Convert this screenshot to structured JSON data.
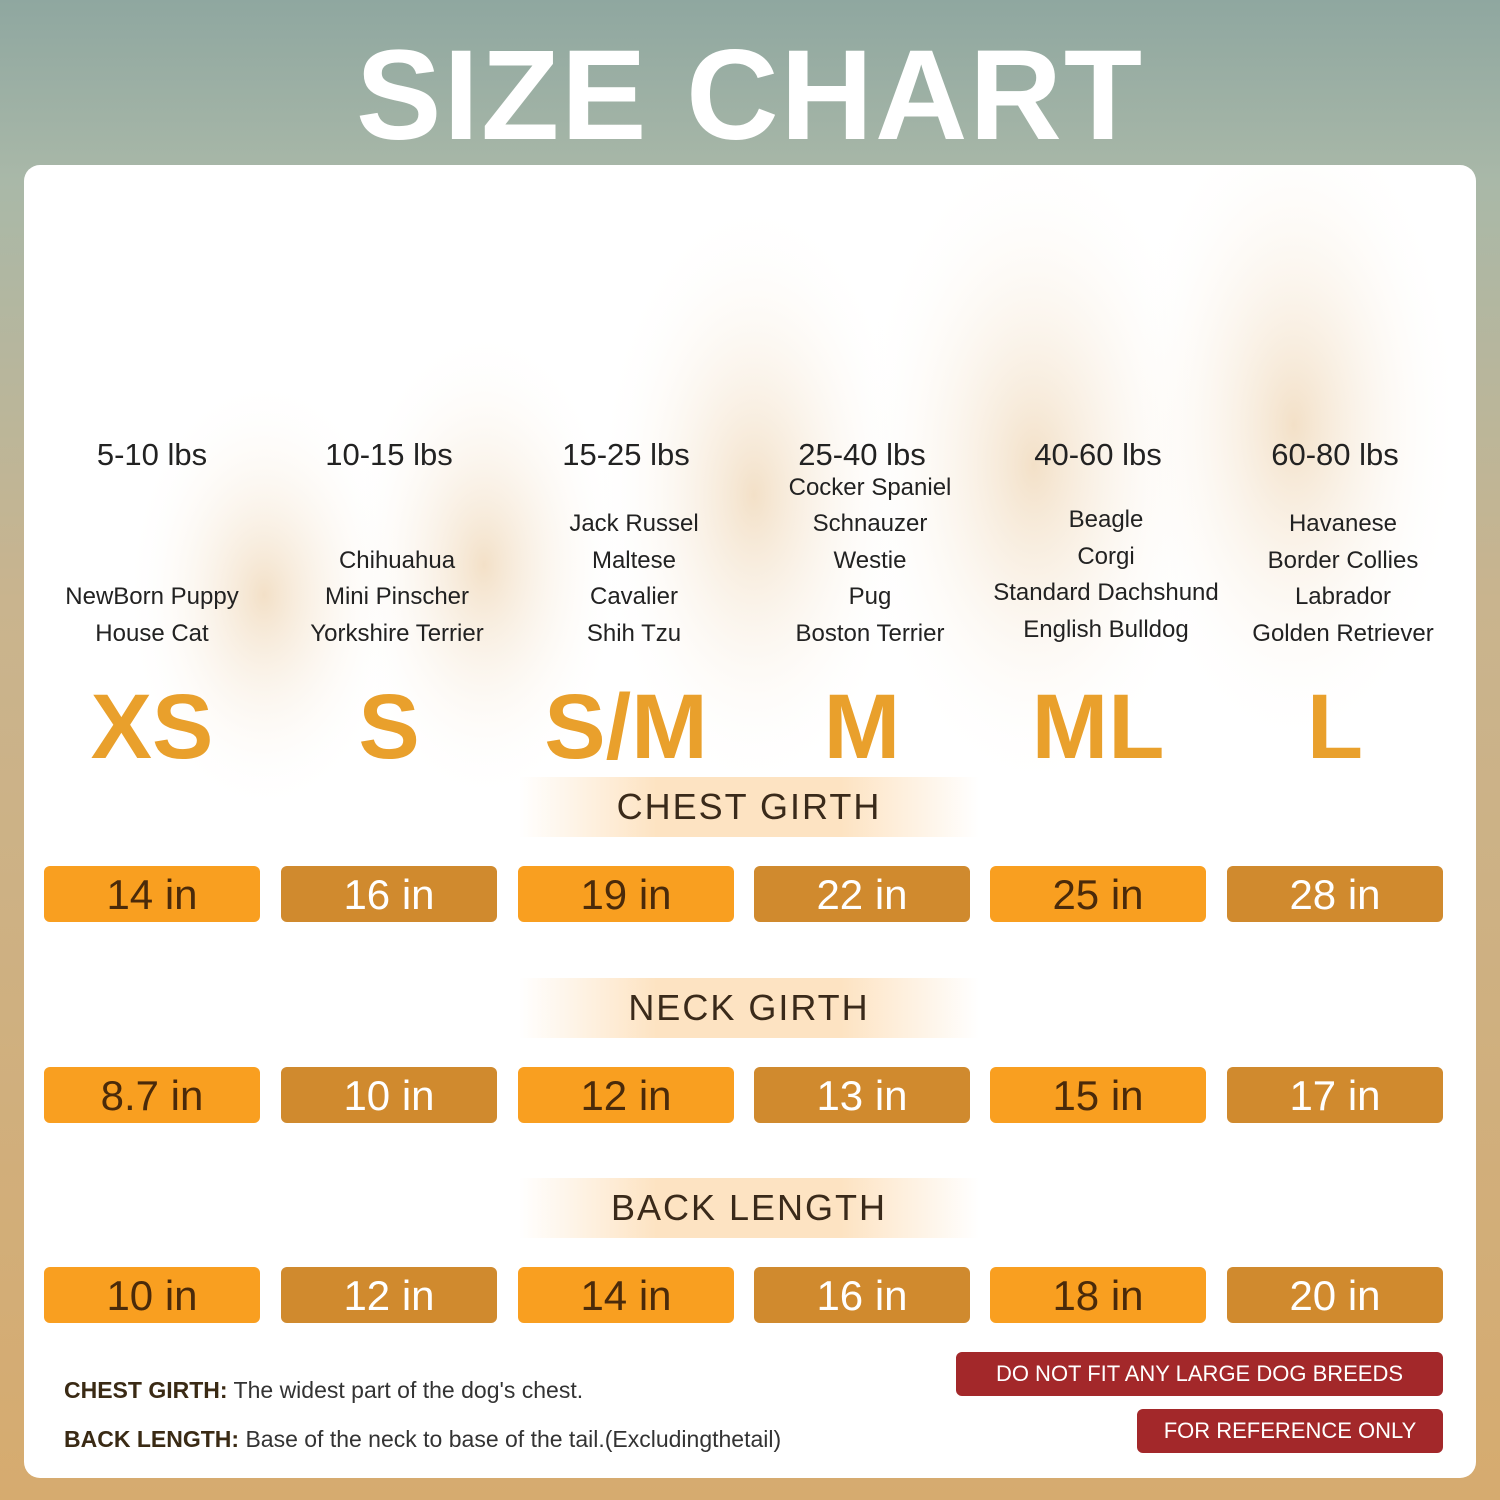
{
  "title": "SIZE CHART",
  "sizes": [
    {
      "size": "XS",
      "weight": "5-10 lbs",
      "breeds": [
        "NewBorn Puppy",
        "House Cat"
      ]
    },
    {
      "size": "S",
      "weight": "10-15 lbs",
      "breeds": [
        "Chihuahua",
        "Mini Pinscher",
        "Yorkshire Terrier"
      ]
    },
    {
      "size": "S/M",
      "weight": "15-25 lbs",
      "breeds": [
        "Jack Russel",
        "Maltese",
        "Cavalier",
        "Shih Tzu"
      ]
    },
    {
      "size": "M",
      "weight": "25-40 lbs",
      "breeds": [
        "Cocker Spaniel",
        "Schnauzer",
        "Westie",
        "Pug",
        "Boston Terrier"
      ]
    },
    {
      "size": "ML",
      "weight": "40-60 lbs",
      "breeds": [
        "Beagle",
        "Corgi",
        "Standard Dachshund",
        "English Bulldog"
      ]
    },
    {
      "size": "L",
      "weight": "60-80 lbs",
      "breeds": [
        "Havanese",
        "Border Collies",
        "Labrador",
        "Golden Retriever"
      ]
    }
  ],
  "measurements": [
    {
      "label": "CHEST GIRTH",
      "values": [
        "14 in",
        "16 in",
        "19 in",
        "22 in",
        "25 in",
        "28 in"
      ]
    },
    {
      "label": "NECK GIRTH",
      "values": [
        "8.7 in",
        "10 in",
        "12 in",
        "13 in",
        "15 in",
        "17 in"
      ]
    },
    {
      "label": "BACK LENGTH",
      "values": [
        "10 in",
        "12 in",
        "14 in",
        "16 in",
        "18 in",
        "20 in"
      ]
    }
  ],
  "notes": [
    {
      "label": "CHEST GIRTH:",
      "text": "The widest part of the dog's chest."
    },
    {
      "label": "BACK LENGTH:",
      "text": "Base of the neck to base of the tail.(Excludingthetail)"
    }
  ],
  "warnings": [
    "DO NOT FIT ANY LARGE DOG BREEDS",
    "FOR REFERENCE ONLY"
  ],
  "colors": {
    "orange": "#f99f20",
    "dark_orange": "#d08a2e",
    "size_letter": "#e9a02c",
    "warning": "#a3282a"
  }
}
